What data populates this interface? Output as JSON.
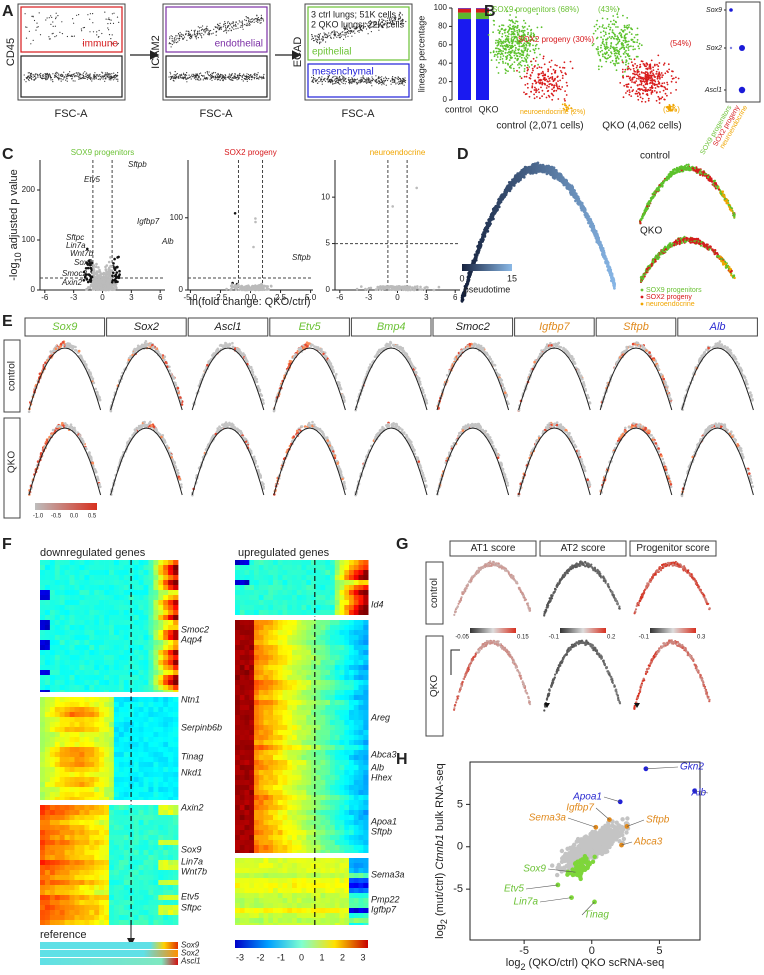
{
  "A": {
    "letter": "A",
    "gates": [
      {
        "y_label": "CD45",
        "x_label": "FSC-A",
        "upper": "immune"
      },
      {
        "y_label": "ICAM2",
        "x_label": "FSC-A",
        "upper": "endothelial"
      },
      {
        "y_label": "ECAD",
        "x_label": "FSC-A",
        "note": [
          "3 ctrl lungs; 51K cells",
          "2 QKO lungs; 22K cells"
        ],
        "upper": "epithelial",
        "lower": "mesenchymal"
      }
    ],
    "bar": {
      "y_label": "lineage percentage",
      "categories": [
        "control",
        "QKO"
      ],
      "yticks": [
        0,
        20,
        40,
        60,
        80,
        100
      ]
    }
  },
  "B": {
    "letter": "B",
    "control": {
      "sox9": "SOX9 progenitors (68%)",
      "sox2": "SOX2 progeny (30%)",
      "ne": "neuroendocrine (2%)",
      "caption": "control (2,071 cells)"
    },
    "qko": {
      "sox9": "(43%)",
      "sox2": "(54%)",
      "ne": "(3%)",
      "caption": "QKO (4,062 cells)"
    },
    "genes": [
      "Sox9",
      "Sox2",
      "Ascl1"
    ],
    "legend": [
      "SOX9 progenitors",
      "SOX2 progeny",
      "neuroendocrine"
    ]
  },
  "C": {
    "letter": "C",
    "y_label": [
      "-log",
      "10",
      " adjusted p value"
    ],
    "x_label": "ln(fold change: QKO/ctrl)",
    "plots": [
      {
        "title": "SOX9 progenitors",
        "xticks": [
          -6,
          -3,
          0,
          3,
          6
        ],
        "yticks": [
          0,
          100,
          200
        ],
        "genes": [
          "Sftpb",
          "Etv5",
          "Igfbp7",
          "Alb",
          "Sftpc",
          "Lin7a",
          "Wnt7b",
          "Sox9",
          "Smoc2",
          "Axin2"
        ]
      },
      {
        "title": "SOX2 progeny",
        "xticks": [
          "-5.0",
          "-2.5",
          "0.0",
          "2.5",
          "5.0"
        ],
        "yticks": [
          0,
          100
        ],
        "genes": [
          "Sftpb"
        ]
      },
      {
        "title": "neuroendocrine",
        "xticks": [
          -6,
          -3,
          0,
          3,
          6
        ],
        "yticks": [
          0,
          5,
          10
        ]
      }
    ]
  },
  "D": {
    "letter": "D",
    "colorbar": {
      "min": 0,
      "max": 15,
      "label": "pseudotime"
    },
    "conditions": [
      "control",
      "QKO"
    ],
    "legend": [
      "SOX9 progenitors",
      "SOX2 progeny",
      "neuroendocrine"
    ]
  },
  "E": {
    "letter": "E",
    "genes": [
      {
        "name": "Sox9",
        "color": "#6cc236"
      },
      {
        "name": "Sox2",
        "color": "#222222"
      },
      {
        "name": "Ascl1",
        "color": "#222222"
      },
      {
        "name": "Etv5",
        "color": "#6cc236"
      },
      {
        "name": "Bmp4",
        "color": "#6cc236"
      },
      {
        "name": "Smoc2",
        "color": "#222222"
      },
      {
        "name": "Igfbp7",
        "color": "#e08a1e"
      },
      {
        "name": "Sftpb",
        "color": "#e08a1e"
      },
      {
        "name": "Alb",
        "color": "#2a2ad0"
      }
    ],
    "rows": [
      "control",
      "QKO"
    ],
    "colorbar": [
      "-1.0",
      "-0.5",
      "0.0",
      "0.5"
    ]
  },
  "F": {
    "letter": "F",
    "left_title": "downregulated genes",
    "right_title": "upregulated genes",
    "left_genes": [
      "Smoc2",
      "Aqp4",
      "Ntn1",
      "Serpinb6b",
      "Tinag",
      "Nkd1",
      "Axin2",
      "Sox9",
      "Lin7a",
      "Wnt7b",
      "Etv5",
      "Sftpc"
    ],
    "right_genes": [
      "Id4",
      "Areg",
      "Abca3",
      "Alb",
      "Hhex",
      "Apoa1",
      "Sftpb",
      "Sema3a",
      "Pmp22",
      "Igfbp7"
    ],
    "reference": {
      "label": "reference",
      "genes": [
        "Sox9",
        "Sox2",
        "Ascl1"
      ]
    },
    "colorbar": [
      -3,
      -2,
      -1,
      0,
      1,
      2,
      3
    ]
  },
  "G": {
    "letter": "G",
    "scores": [
      {
        "name": "AT1 score",
        "min": "-0.05",
        "max": "0.15"
      },
      {
        "name": "AT2 score",
        "min": "-0.1",
        "max": "0.2"
      },
      {
        "name": "Progenitor score",
        "min": "-0.1",
        "max": "0.3"
      }
    ],
    "rows": [
      "control",
      "QKO"
    ]
  },
  "H": {
    "letter": "H",
    "y_label": [
      "log",
      "2",
      " (mut/ctrl) ",
      "Ctnnb1",
      " bulk RNA-seq"
    ],
    "x_label": [
      "log",
      "2",
      " (QKO/ctrl) QKO scRNA-seq"
    ],
    "xticks": [
      -5,
      0,
      5
    ],
    "yticks": [
      5,
      0,
      -5
    ],
    "genes": [
      {
        "name": "Gkn2",
        "color": "#2a2ad0"
      },
      {
        "name": "Alb",
        "color": "#2a2ad0"
      },
      {
        "name": "Apoa1",
        "color": "#2a2ad0"
      },
      {
        "name": "Igfbp7",
        "color": "#e08a1e"
      },
      {
        "name": "Sema3a",
        "color": "#e08a1e"
      },
      {
        "name": "Sftpb",
        "color": "#e08a1e"
      },
      {
        "name": "Abca3",
        "color": "#e08a1e"
      },
      {
        "name": "Sox9",
        "color": "#6cc236"
      },
      {
        "name": "Etv5",
        "color": "#6cc236"
      },
      {
        "name": "Lin7a",
        "color": "#6cc236"
      },
      {
        "name": "Tinag",
        "color": "#6cc236"
      }
    ]
  }
}
